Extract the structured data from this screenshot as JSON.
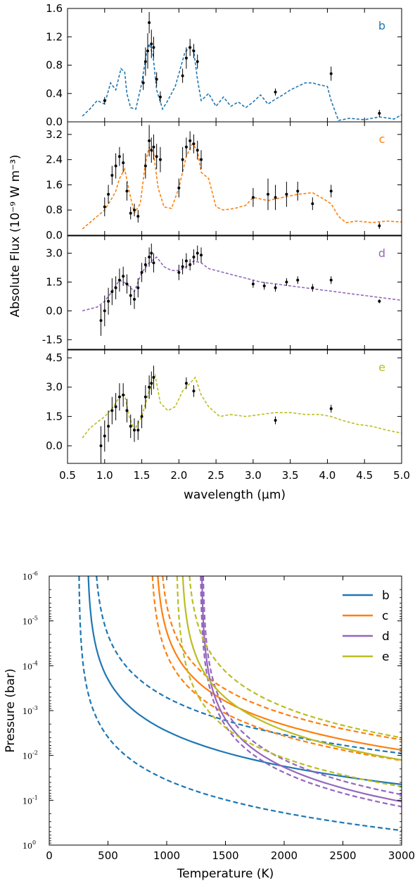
{
  "chart_data": [
    {
      "type": "line",
      "description_of_figure": "Top: four stacked spectrum panels sharing a wavelength axis",
      "xlabel": "wavelength (μm)",
      "ylabel": "Absolute Flux (10⁻⁹ W m⁻³)",
      "xlim": [
        0.5,
        5.0
      ],
      "xticks": [
        "0.5",
        "1.0",
        "1.5",
        "2.0",
        "2.5",
        "3.0",
        "3.5",
        "4.0",
        "4.5",
        "5.0"
      ],
      "panels": [
        {
          "letter": "b",
          "color": "#1f77b4",
          "ylim": [
            0.0,
            1.6
          ],
          "yticks": [
            "0.0",
            "0.4",
            "0.8",
            "1.2",
            "1.6"
          ],
          "model": {
            "x": [
              0.7,
              0.8,
              0.9,
              1.0,
              1.08,
              1.15,
              1.22,
              1.27,
              1.3,
              1.35,
              1.42,
              1.5,
              1.56,
              1.6,
              1.65,
              1.7,
              1.78,
              1.85,
              1.95,
              2.02,
              2.08,
              2.14,
              2.2,
              2.25,
              2.3,
              2.4,
              2.5,
              2.6,
              2.7,
              2.8,
              2.9,
              3.0,
              3.1,
              3.2,
              3.3,
              3.4,
              3.5,
              3.6,
              3.7,
              3.8,
              3.9,
              4.0,
              4.05,
              4.15,
              4.3,
              4.5,
              4.7,
              4.9,
              5.0
            ],
            "y": [
              0.08,
              0.18,
              0.3,
              0.25,
              0.55,
              0.45,
              0.75,
              0.7,
              0.4,
              0.2,
              0.18,
              0.55,
              0.95,
              1.1,
              0.95,
              0.45,
              0.18,
              0.3,
              0.5,
              0.75,
              0.98,
              1.05,
              1.0,
              0.6,
              0.3,
              0.4,
              0.22,
              0.35,
              0.22,
              0.28,
              0.2,
              0.28,
              0.38,
              0.25,
              0.32,
              0.38,
              0.45,
              0.5,
              0.55,
              0.55,
              0.52,
              0.5,
              0.3,
              0.02,
              0.05,
              0.03,
              0.07,
              0.04,
              0.1
            ]
          },
          "points": {
            "x": [
              1.0,
              1.52,
              1.55,
              1.58,
              1.6,
              1.63,
              1.66,
              1.7,
              1.75,
              2.05,
              2.1,
              2.15,
              2.2,
              2.25,
              3.3,
              4.05,
              4.7
            ],
            "y": [
              0.3,
              0.55,
              0.85,
              1.0,
              1.4,
              1.1,
              1.05,
              0.6,
              0.35,
              0.65,
              0.9,
              1.05,
              1.0,
              0.85,
              0.42,
              0.68,
              0.12
            ],
            "err": [
              0.05,
              0.1,
              0.2,
              0.25,
              0.15,
              0.2,
              0.15,
              0.1,
              0.08,
              0.1,
              0.15,
              0.12,
              0.1,
              0.1,
              0.05,
              0.1,
              0.05
            ]
          }
        },
        {
          "letter": "c",
          "color": "#ff7f0e",
          "ylim": [
            0.0,
            3.6
          ],
          "yticks": [
            "0.0",
            "0.8",
            "1.6",
            "2.4",
            "3.2"
          ],
          "model": {
            "x": [
              0.7,
              0.8,
              0.9,
              1.0,
              1.08,
              1.15,
              1.2,
              1.27,
              1.33,
              1.4,
              1.48,
              1.55,
              1.6,
              1.66,
              1.72,
              1.8,
              1.9,
              2.0,
              2.1,
              2.18,
              2.25,
              2.3,
              2.4,
              2.5,
              2.6,
              2.75,
              2.9,
              3.0,
              3.2,
              3.4,
              3.6,
              3.8,
              3.95,
              4.05,
              4.15,
              4.25,
              4.4,
              4.6,
              4.8,
              5.0
            ],
            "y": [
              0.2,
              0.4,
              0.6,
              0.8,
              1.1,
              1.4,
              1.8,
              2.1,
              1.4,
              0.7,
              1.0,
              2.3,
              2.8,
              2.6,
              1.5,
              0.9,
              0.85,
              1.5,
              2.5,
              2.9,
              2.7,
              2.0,
              1.8,
              0.9,
              0.8,
              0.85,
              0.95,
              1.2,
              1.1,
              1.2,
              1.3,
              1.35,
              1.15,
              1.0,
              0.6,
              0.4,
              0.45,
              0.4,
              0.45,
              0.42
            ]
          },
          "points": {
            "x": [
              1.0,
              1.05,
              1.1,
              1.15,
              1.2,
              1.25,
              1.3,
              1.35,
              1.4,
              1.45,
              1.55,
              1.6,
              1.63,
              1.66,
              1.7,
              1.75,
              2.0,
              2.05,
              2.1,
              2.15,
              2.2,
              2.25,
              2.3,
              3.0,
              3.2,
              3.3,
              3.45,
              3.6,
              3.8,
              4.05,
              4.7
            ],
            "y": [
              0.9,
              1.3,
              1.9,
              2.2,
              2.5,
              2.3,
              1.4,
              0.7,
              0.8,
              0.6,
              2.2,
              3.0,
              2.7,
              2.8,
              2.5,
              2.4,
              1.5,
              2.4,
              2.8,
              3.0,
              2.9,
              2.7,
              2.4,
              1.2,
              1.3,
              1.2,
              1.3,
              1.4,
              1.0,
              1.4,
              0.3
            ],
            "err": [
              0.3,
              0.3,
              0.3,
              0.4,
              0.3,
              0.3,
              0.3,
              0.2,
              0.2,
              0.2,
              0.4,
              0.5,
              0.4,
              0.4,
              0.4,
              0.4,
              0.3,
              0.4,
              0.3,
              0.3,
              0.3,
              0.3,
              0.3,
              0.3,
              0.5,
              0.4,
              0.4,
              0.3,
              0.2,
              0.2,
              0.1
            ]
          }
        },
        {
          "letter": "d",
          "color": "#9467bd",
          "ylim": [
            -2.0,
            3.9
          ],
          "yticks": [
            "-1.5",
            "0.0",
            "1.5",
            "3.0"
          ],
          "model": {
            "x": [
              0.7,
              0.8,
              0.9,
              1.0,
              1.1,
              1.2,
              1.3,
              1.4,
              1.5,
              1.6,
              1.7,
              1.8,
              1.9,
              2.0,
              2.1,
              2.2,
              2.3,
              2.4,
              2.5,
              2.7,
              2.9,
              3.1,
              3.3,
              3.5,
              3.7,
              3.9,
              4.1,
              4.3,
              4.5,
              4.7,
              4.9,
              5.0
            ],
            "y": [
              0.0,
              0.1,
              0.2,
              0.5,
              1.0,
              1.6,
              1.4,
              1.0,
              2.0,
              2.5,
              2.8,
              2.3,
              2.1,
              2.1,
              2.3,
              2.6,
              2.5,
              2.2,
              2.1,
              1.9,
              1.7,
              1.5,
              1.4,
              1.3,
              1.2,
              1.1,
              1.0,
              0.9,
              0.8,
              0.7,
              0.6,
              0.55
            ]
          },
          "points": {
            "x": [
              0.95,
              1.0,
              1.05,
              1.1,
              1.15,
              1.2,
              1.25,
              1.3,
              1.35,
              1.4,
              1.45,
              1.5,
              1.55,
              1.6,
              1.63,
              1.66,
              2.0,
              2.05,
              2.1,
              2.15,
              2.2,
              2.25,
              2.3,
              3.0,
              3.15,
              3.3,
              3.45,
              3.6,
              3.8,
              4.05,
              4.7
            ],
            "y": [
              -0.5,
              0.0,
              0.5,
              1.0,
              1.2,
              1.6,
              1.8,
              1.4,
              0.8,
              0.6,
              1.2,
              2.0,
              2.4,
              2.8,
              3.0,
              2.5,
              2.0,
              2.3,
              2.6,
              2.4,
              2.8,
              3.0,
              2.9,
              1.4,
              1.3,
              1.2,
              1.5,
              1.6,
              1.2,
              1.6,
              0.5
            ],
            "err": [
              0.8,
              0.8,
              0.7,
              0.7,
              0.6,
              0.6,
              0.5,
              0.5,
              0.5,
              0.5,
              0.5,
              0.5,
              0.4,
              0.5,
              0.5,
              0.5,
              0.4,
              0.4,
              0.4,
              0.3,
              0.4,
              0.4,
              0.4,
              0.2,
              0.2,
              0.2,
              0.2,
              0.2,
              0.2,
              0.2,
              0.1
            ]
          }
        },
        {
          "letter": "e",
          "color": "#bcbd22",
          "ylim": [
            -0.9,
            4.9
          ],
          "yticks": [
            "0.0",
            "1.5",
            "3.0",
            "4.5"
          ],
          "model": {
            "x": [
              0.7,
              0.8,
              0.9,
              1.0,
              1.1,
              1.2,
              1.27,
              1.33,
              1.4,
              1.5,
              1.6,
              1.68,
              1.75,
              1.85,
              1.95,
              2.05,
              2.15,
              2.22,
              2.3,
              2.4,
              2.55,
              2.7,
              2.9,
              3.1,
              3.3,
              3.5,
              3.7,
              3.9,
              4.05,
              4.2,
              4.4,
              4.6,
              4.8,
              5.0
            ],
            "y": [
              0.4,
              0.9,
              1.2,
              1.5,
              1.9,
              2.5,
              2.6,
              1.5,
              0.8,
              1.5,
              2.8,
              3.6,
              2.2,
              1.8,
              2.0,
              2.8,
              3.2,
              3.5,
              2.6,
              2.0,
              1.5,
              1.6,
              1.5,
              1.6,
              1.7,
              1.7,
              1.6,
              1.6,
              1.5,
              1.3,
              1.1,
              1.0,
              0.8,
              0.65
            ]
          },
          "points": {
            "x": [
              0.95,
              1.0,
              1.05,
              1.1,
              1.15,
              1.2,
              1.25,
              1.3,
              1.35,
              1.4,
              1.45,
              1.5,
              1.55,
              1.6,
              1.63,
              1.66,
              2.1,
              2.2,
              3.3,
              4.05
            ],
            "y": [
              0.0,
              0.5,
              1.0,
              1.8,
              2.0,
              2.5,
              2.6,
              1.8,
              1.0,
              0.8,
              0.8,
              1.5,
              2.5,
              3.0,
              3.2,
              3.5,
              3.2,
              2.8,
              1.3,
              1.9
            ],
            "err": [
              1.0,
              0.8,
              0.8,
              0.7,
              0.7,
              0.7,
              0.6,
              0.6,
              0.6,
              0.6,
              0.5,
              0.6,
              0.6,
              0.6,
              0.6,
              0.6,
              0.3,
              0.3,
              0.2,
              0.2
            ]
          }
        }
      ]
    },
    {
      "type": "line",
      "xlabel": "Temperature (K)",
      "ylabel": "Pressure (bar)",
      "xlim": [
        0,
        3000
      ],
      "ylim_log": [
        -6,
        0
      ],
      "xticks": [
        "0",
        "500",
        "1000",
        "1500",
        "2000",
        "2500",
        "3000"
      ],
      "yticks": [
        {
          "base": "10",
          "exp": "-6",
          "value": -6
        },
        {
          "base": "10",
          "exp": "-5",
          "value": -5
        },
        {
          "base": "10",
          "exp": "-4",
          "value": -4
        },
        {
          "base": "10",
          "exp": "-3",
          "value": -3
        },
        {
          "base": "10",
          "exp": "-2",
          "value": -2
        },
        {
          "base": "10",
          "exp": "-1",
          "value": -1
        },
        {
          "base": "10",
          "exp": "0",
          "value": 0
        }
      ],
      "legend_placement": "top-right",
      "series": [
        {
          "name": "b",
          "color": "#1f77b4",
          "T0": 320,
          "scale": 12.7,
          "lo": {
            "T0": 250,
            "scale": 4.0
          },
          "hi": {
            "T0": 375,
            "scale": 27.6
          }
        },
        {
          "name": "c",
          "color": "#ff7f0e",
          "T0": 900,
          "scale": 24.1,
          "lo": {
            "T0": 860,
            "scale": 18.8
          },
          "hi": {
            "T0": 935,
            "scale": 30.9
          }
        },
        {
          "name": "d",
          "color": "#9467bd",
          "T0": 1295,
          "scale": 5.2,
          "lo": {
            "T0": 1285,
            "scale": 4.6
          },
          "hi": {
            "T0": 1305,
            "scale": 6.2
          }
        },
        {
          "name": "e",
          "color": "#bcbd22",
          "T0": 1120,
          "scale": 16.7,
          "lo": {
            "T0": 1080,
            "scale": 8.6
          },
          "hi": {
            "T0": 1165,
            "scale": 28.9
          }
        }
      ]
    }
  ]
}
